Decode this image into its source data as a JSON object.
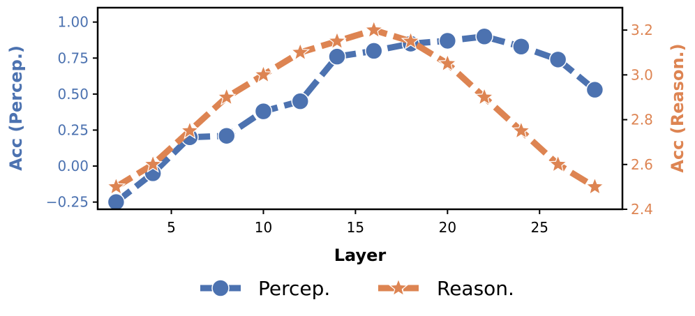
{
  "chart_data": {
    "type": "line",
    "title": "",
    "xlabel": "Layer",
    "ylabel_left": "Acc (Percep.)",
    "ylabel_right": "Acc (Reason.)",
    "xlim": [
      1,
      29.5
    ],
    "ylim_left": [
      -0.3,
      1.1
    ],
    "ylim_right": [
      2.4,
      3.3
    ],
    "x_ticks": [
      5,
      10,
      15,
      20,
      25
    ],
    "y_ticks_left": [
      -0.25,
      0.0,
      0.25,
      0.5,
      0.75,
      1.0
    ],
    "y_tick_labels_left": [
      "−0.25",
      "0.00",
      "0.25",
      "0.50",
      "0.75",
      "1.00"
    ],
    "y_ticks_right": [
      2.4,
      2.6,
      2.8,
      3.0,
      3.2
    ],
    "y_tick_labels_right": [
      "2.4",
      "2.6",
      "2.8",
      "3.0",
      "3.2"
    ],
    "grid": false,
    "legend_position": "bottom-center",
    "series": [
      {
        "name": "Percep.",
        "axis": "left",
        "color": "#4c72b0",
        "marker": "circle",
        "linestyle": "dashed",
        "x": [
          2,
          4,
          6,
          8,
          10,
          12,
          14,
          16,
          18,
          20,
          22,
          24,
          26,
          28
        ],
        "values": [
          -0.25,
          -0.05,
          0.2,
          0.21,
          0.38,
          0.45,
          0.76,
          0.8,
          0.85,
          0.87,
          0.9,
          0.83,
          0.74,
          0.53
        ]
      },
      {
        "name": "Reason.",
        "axis": "right",
        "color": "#dd8452",
        "marker": "star",
        "linestyle": "dashed",
        "x": [
          2,
          4,
          6,
          8,
          10,
          12,
          14,
          16,
          18,
          20,
          22,
          24,
          26,
          28
        ],
        "values": [
          2.5,
          2.6,
          2.75,
          2.9,
          3.0,
          3.1,
          3.15,
          3.2,
          3.15,
          3.05,
          2.9,
          2.75,
          2.6,
          2.5
        ]
      }
    ]
  }
}
